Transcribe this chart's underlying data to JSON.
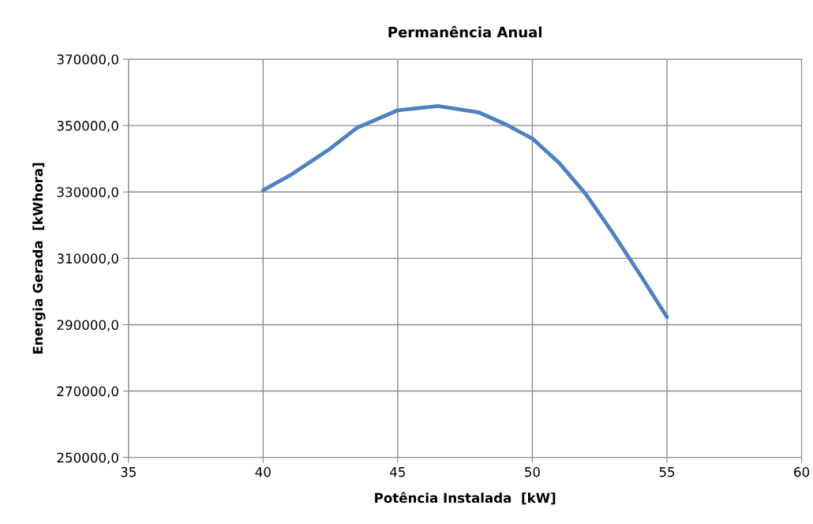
{
  "chart_data": {
    "type": "line",
    "title": "Permanência Anual",
    "xlabel": "Potência Instalada  [kW]",
    "ylabel": "Energia Gerada  [kWhora]",
    "x": [
      40,
      41,
      42.5,
      43.5,
      45,
      46.5,
      48,
      49,
      50,
      51,
      52,
      53,
      54,
      55
    ],
    "series": [
      {
        "color": "#4f81bd",
        "values": [
          330500,
          335000,
          343100,
          349400,
          354600,
          355900,
          354000,
          350400,
          346100,
          338700,
          329200,
          317500,
          305100,
          292300
        ]
      }
    ],
    "xlim": [
      35,
      60
    ],
    "xticks": [
      35,
      40,
      45,
      50,
      55,
      60
    ],
    "ylim": [
      250000,
      370000
    ],
    "yticks": [
      {
        "value": 250000,
        "label": "250000,0"
      },
      {
        "value": 270000,
        "label": "270000,0"
      },
      {
        "value": 290000,
        "label": "290000,0"
      },
      {
        "value": 310000,
        "label": "310000,0"
      },
      {
        "value": 330000,
        "label": "330000,0"
      },
      {
        "value": 350000,
        "label": "350000,0"
      },
      {
        "value": 370000,
        "label": "370000,0"
      }
    ],
    "grid": true,
    "marker": "none",
    "line_style": "solid"
  }
}
